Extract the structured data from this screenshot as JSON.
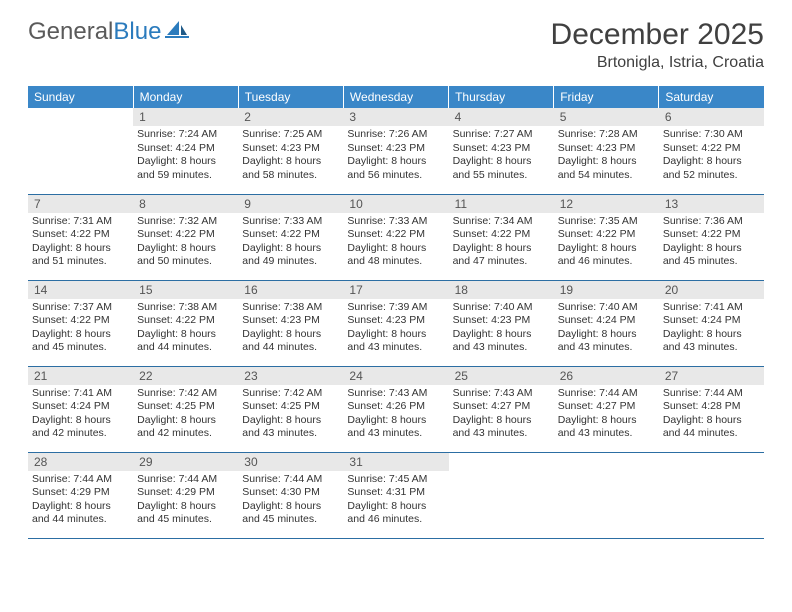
{
  "logo": {
    "text1": "General",
    "text2": "Blue"
  },
  "title": "December 2025",
  "location": "Brtonigla, Istria, Croatia",
  "colors": {
    "header_bg": "#3a87c8",
    "header_text": "#ffffff",
    "daynum_bg": "#e8e8e8",
    "daynum_text": "#555555",
    "row_border": "#2c6ea3",
    "body_text": "#333333",
    "logo_gray": "#5a5a5a",
    "logo_blue": "#2b7bbd"
  },
  "weekdays": [
    "Sunday",
    "Monday",
    "Tuesday",
    "Wednesday",
    "Thursday",
    "Friday",
    "Saturday"
  ],
  "weeks": [
    [
      {
        "n": "",
        "sr": "",
        "ss": "",
        "dl": ""
      },
      {
        "n": "1",
        "sr": "Sunrise: 7:24 AM",
        "ss": "Sunset: 4:24 PM",
        "dl": "Daylight: 8 hours and 59 minutes."
      },
      {
        "n": "2",
        "sr": "Sunrise: 7:25 AM",
        "ss": "Sunset: 4:23 PM",
        "dl": "Daylight: 8 hours and 58 minutes."
      },
      {
        "n": "3",
        "sr": "Sunrise: 7:26 AM",
        "ss": "Sunset: 4:23 PM",
        "dl": "Daylight: 8 hours and 56 minutes."
      },
      {
        "n": "4",
        "sr": "Sunrise: 7:27 AM",
        "ss": "Sunset: 4:23 PM",
        "dl": "Daylight: 8 hours and 55 minutes."
      },
      {
        "n": "5",
        "sr": "Sunrise: 7:28 AM",
        "ss": "Sunset: 4:23 PM",
        "dl": "Daylight: 8 hours and 54 minutes."
      },
      {
        "n": "6",
        "sr": "Sunrise: 7:30 AM",
        "ss": "Sunset: 4:22 PM",
        "dl": "Daylight: 8 hours and 52 minutes."
      }
    ],
    [
      {
        "n": "7",
        "sr": "Sunrise: 7:31 AM",
        "ss": "Sunset: 4:22 PM",
        "dl": "Daylight: 8 hours and 51 minutes."
      },
      {
        "n": "8",
        "sr": "Sunrise: 7:32 AM",
        "ss": "Sunset: 4:22 PM",
        "dl": "Daylight: 8 hours and 50 minutes."
      },
      {
        "n": "9",
        "sr": "Sunrise: 7:33 AM",
        "ss": "Sunset: 4:22 PM",
        "dl": "Daylight: 8 hours and 49 minutes."
      },
      {
        "n": "10",
        "sr": "Sunrise: 7:33 AM",
        "ss": "Sunset: 4:22 PM",
        "dl": "Daylight: 8 hours and 48 minutes."
      },
      {
        "n": "11",
        "sr": "Sunrise: 7:34 AM",
        "ss": "Sunset: 4:22 PM",
        "dl": "Daylight: 8 hours and 47 minutes."
      },
      {
        "n": "12",
        "sr": "Sunrise: 7:35 AM",
        "ss": "Sunset: 4:22 PM",
        "dl": "Daylight: 8 hours and 46 minutes."
      },
      {
        "n": "13",
        "sr": "Sunrise: 7:36 AM",
        "ss": "Sunset: 4:22 PM",
        "dl": "Daylight: 8 hours and 45 minutes."
      }
    ],
    [
      {
        "n": "14",
        "sr": "Sunrise: 7:37 AM",
        "ss": "Sunset: 4:22 PM",
        "dl": "Daylight: 8 hours and 45 minutes."
      },
      {
        "n": "15",
        "sr": "Sunrise: 7:38 AM",
        "ss": "Sunset: 4:22 PM",
        "dl": "Daylight: 8 hours and 44 minutes."
      },
      {
        "n": "16",
        "sr": "Sunrise: 7:38 AM",
        "ss": "Sunset: 4:23 PM",
        "dl": "Daylight: 8 hours and 44 minutes."
      },
      {
        "n": "17",
        "sr": "Sunrise: 7:39 AM",
        "ss": "Sunset: 4:23 PM",
        "dl": "Daylight: 8 hours and 43 minutes."
      },
      {
        "n": "18",
        "sr": "Sunrise: 7:40 AM",
        "ss": "Sunset: 4:23 PM",
        "dl": "Daylight: 8 hours and 43 minutes."
      },
      {
        "n": "19",
        "sr": "Sunrise: 7:40 AM",
        "ss": "Sunset: 4:24 PM",
        "dl": "Daylight: 8 hours and 43 minutes."
      },
      {
        "n": "20",
        "sr": "Sunrise: 7:41 AM",
        "ss": "Sunset: 4:24 PM",
        "dl": "Daylight: 8 hours and 43 minutes."
      }
    ],
    [
      {
        "n": "21",
        "sr": "Sunrise: 7:41 AM",
        "ss": "Sunset: 4:24 PM",
        "dl": "Daylight: 8 hours and 42 minutes."
      },
      {
        "n": "22",
        "sr": "Sunrise: 7:42 AM",
        "ss": "Sunset: 4:25 PM",
        "dl": "Daylight: 8 hours and 42 minutes."
      },
      {
        "n": "23",
        "sr": "Sunrise: 7:42 AM",
        "ss": "Sunset: 4:25 PM",
        "dl": "Daylight: 8 hours and 43 minutes."
      },
      {
        "n": "24",
        "sr": "Sunrise: 7:43 AM",
        "ss": "Sunset: 4:26 PM",
        "dl": "Daylight: 8 hours and 43 minutes."
      },
      {
        "n": "25",
        "sr": "Sunrise: 7:43 AM",
        "ss": "Sunset: 4:27 PM",
        "dl": "Daylight: 8 hours and 43 minutes."
      },
      {
        "n": "26",
        "sr": "Sunrise: 7:44 AM",
        "ss": "Sunset: 4:27 PM",
        "dl": "Daylight: 8 hours and 43 minutes."
      },
      {
        "n": "27",
        "sr": "Sunrise: 7:44 AM",
        "ss": "Sunset: 4:28 PM",
        "dl": "Daylight: 8 hours and 44 minutes."
      }
    ],
    [
      {
        "n": "28",
        "sr": "Sunrise: 7:44 AM",
        "ss": "Sunset: 4:29 PM",
        "dl": "Daylight: 8 hours and 44 minutes."
      },
      {
        "n": "29",
        "sr": "Sunrise: 7:44 AM",
        "ss": "Sunset: 4:29 PM",
        "dl": "Daylight: 8 hours and 45 minutes."
      },
      {
        "n": "30",
        "sr": "Sunrise: 7:44 AM",
        "ss": "Sunset: 4:30 PM",
        "dl": "Daylight: 8 hours and 45 minutes."
      },
      {
        "n": "31",
        "sr": "Sunrise: 7:45 AM",
        "ss": "Sunset: 4:31 PM",
        "dl": "Daylight: 8 hours and 46 minutes."
      },
      {
        "n": "",
        "sr": "",
        "ss": "",
        "dl": ""
      },
      {
        "n": "",
        "sr": "",
        "ss": "",
        "dl": ""
      },
      {
        "n": "",
        "sr": "",
        "ss": "",
        "dl": ""
      }
    ]
  ]
}
